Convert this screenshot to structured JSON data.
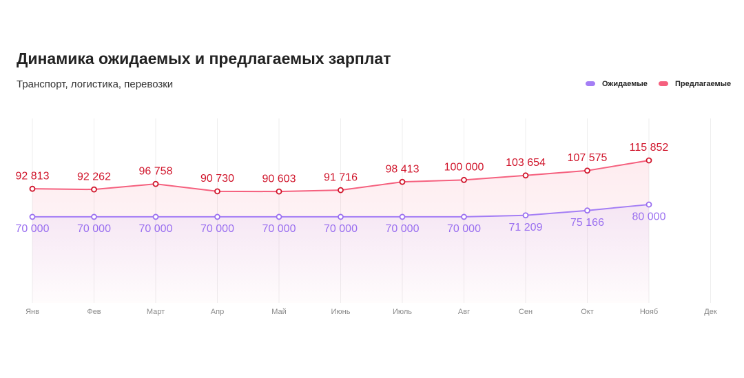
{
  "chart_data": {
    "type": "line",
    "title": "Динамика ожидаемых и предлагаемых зарплат",
    "subtitle": "Транспорт, логистика, перевозки",
    "categories": [
      "Янв",
      "Фев",
      "Март",
      "Апр",
      "Май",
      "Июнь",
      "Июль",
      "Авг",
      "Сен",
      "Окт",
      "Нояб",
      "Дек"
    ],
    "ylim": [
      0,
      150000
    ],
    "grid": true,
    "legend": "top-right",
    "series": [
      {
        "name": "Ожидаемые",
        "color": "#a47ef5",
        "values": [
          70000,
          70000,
          70000,
          70000,
          70000,
          70000,
          70000,
          70000,
          71209,
          75166,
          80000,
          null
        ],
        "value_labels": [
          "70 000",
          "70 000",
          "70 000",
          "70 000",
          "70 000",
          "70 000",
          "70 000",
          "70 000",
          "71 209",
          "75 166",
          "80 000",
          null
        ]
      },
      {
        "name": "Предлагаемые",
        "color": "#f5607e",
        "values": [
          92813,
          92262,
          96758,
          90730,
          90603,
          91716,
          98413,
          100000,
          103654,
          107575,
          115852,
          null
        ],
        "value_labels": [
          "92 813",
          "92 262",
          "96 758",
          "90 730",
          "90 603",
          "91 716",
          "98 413",
          "100 000",
          "103 654",
          "107 575",
          "115 852",
          null
        ]
      }
    ]
  }
}
